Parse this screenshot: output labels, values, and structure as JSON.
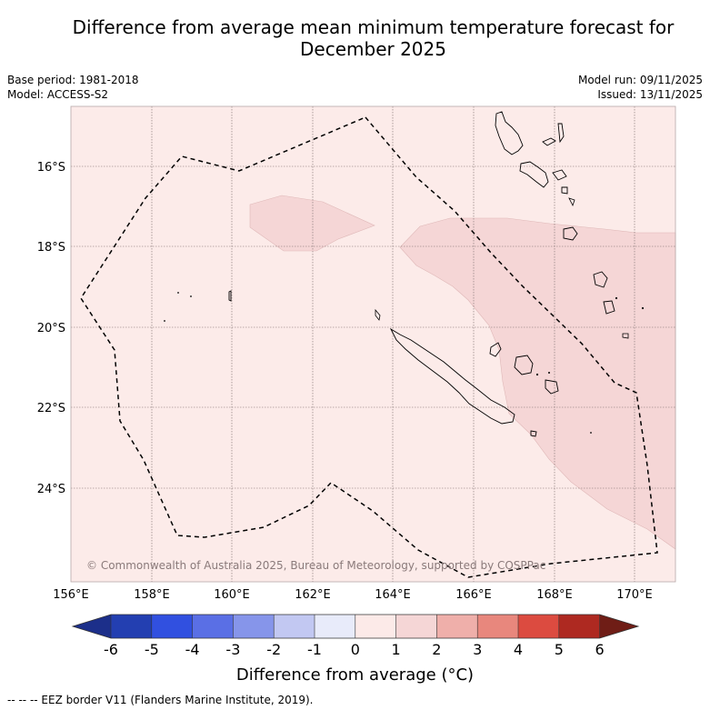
{
  "title_line1": "Difference from average mean minimum temperature forecast for",
  "title_line2": "December 2025",
  "meta": {
    "base_period": "Base period: 1981-2018",
    "model": "Model: ACCESS-S2",
    "model_run": "Model run: 09/11/2025",
    "issued": "Issued: 13/11/2025"
  },
  "map": {
    "lon_ticks": [
      "156°E",
      "158°E",
      "160°E",
      "162°E",
      "164°E",
      "166°E",
      "168°E",
      "170°E"
    ],
    "lat_ticks": [
      "16°S",
      "18°S",
      "20°S",
      "22°S",
      "24°S"
    ],
    "copyright": "© Commonwealth of Australia 2025, Bureau of Meteorology, supported by COSPPac"
  },
  "colorbar": {
    "labels": [
      "-6",
      "-5",
      "-4",
      "-3",
      "-2",
      "-1",
      "0",
      "1",
      "2",
      "3",
      "4",
      "5",
      "6"
    ],
    "colors": [
      "#1c2f8a",
      "#233fb1",
      "#3150e0",
      "#5a6fe5",
      "#8695ea",
      "#c2c8f2",
      "#e8ebfa",
      "#fceae8",
      "#f5d6d6",
      "#efafaa",
      "#e8877d",
      "#dc4b40",
      "#ae2921",
      "#6f1d16"
    ],
    "title": "Difference from average (°C)"
  },
  "footnote": "--  --  -- EEZ border V11 (Flanders Marine Institute, 2019).",
  "colors": {
    "background_anomaly": "#fcebe9",
    "anomaly_plus_1_2": "#f5d6d6"
  }
}
